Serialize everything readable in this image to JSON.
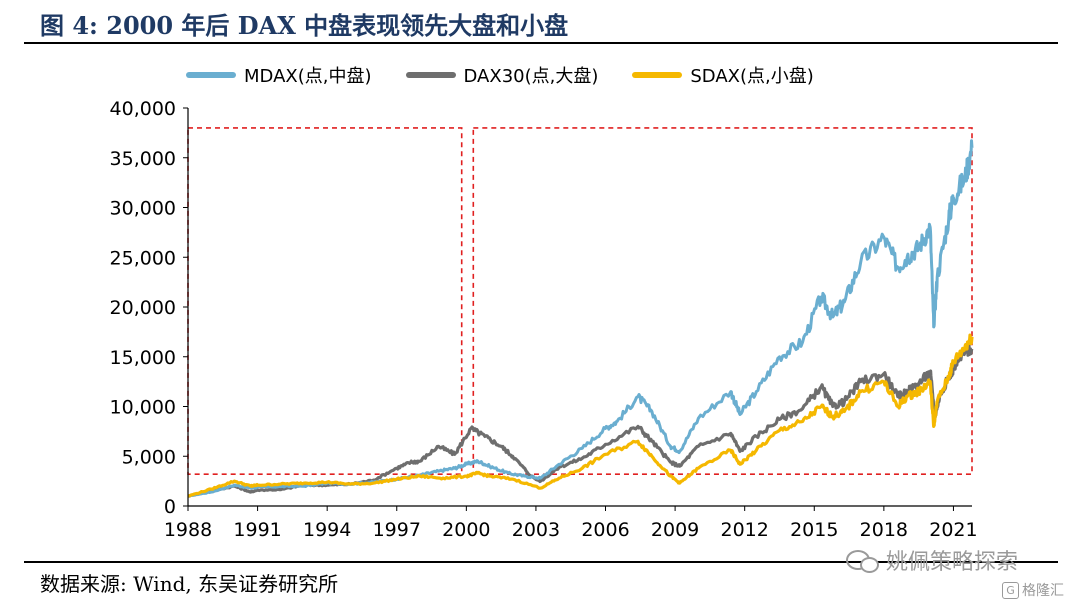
{
  "figure": {
    "title": "图 4:  2000 年后 DAX 中盘表现领先大盘和小盘",
    "source": "数据来源:  Wind,  东吴证券研究所",
    "watermark": "姚佩策略探索",
    "watermark_icon": "wechat-icon",
    "logo_text": "格隆汇",
    "logo_icon": "g-logo-icon"
  },
  "chart_data": {
    "type": "line",
    "title": "",
    "xlabel": "",
    "ylabel": "",
    "ylim": [
      0,
      40000
    ],
    "yticks": [
      "0",
      "5,000",
      "10,000",
      "15,000",
      "20,000",
      "25,000",
      "30,000",
      "35,000",
      "40,000"
    ],
    "xticks": [
      "1988",
      "1991",
      "1994",
      "1997",
      "2000",
      "2003",
      "2006",
      "2009",
      "2012",
      "2015",
      "2018",
      "2021"
    ],
    "xlim": [
      1988,
      2021.8
    ],
    "grid": false,
    "legend": "top",
    "annotations": [
      {
        "type": "dashed-box",
        "color": "#e02020",
        "x_range": [
          1988,
          1999.8
        ],
        "y_range": [
          3200,
          38000
        ]
      },
      {
        "type": "dashed-box",
        "color": "#e02020",
        "x_range": [
          2000.3,
          2021.8
        ],
        "y_range": [
          3200,
          38000
        ]
      }
    ],
    "series": [
      {
        "name": "MDAX(点,中盘)",
        "color": "#6aaed0",
        "x": [
          1988,
          1989,
          1990,
          1990.7,
          1991,
          1992,
          1993,
          1994,
          1995,
          1996,
          1997,
          1998,
          1998.8,
          1999.5,
          2000,
          2000.5,
          2001,
          2001.8,
          2002.5,
          2003.2,
          2004,
          2005,
          2006,
          2006.5,
          2007.4,
          2008,
          2008.8,
          2009.2,
          2010,
          2011.4,
          2011.8,
          2012.5,
          2013.5,
          2014.5,
          2015.3,
          2015.8,
          2016.3,
          2017,
          2018,
          2018.6,
          2019,
          2019.5,
          2020,
          2020.15,
          2020.3,
          2020.8,
          2021,
          2021.5,
          2021.8
        ],
        "values": [
          1000,
          1400,
          2100,
          1800,
          1900,
          1950,
          2000,
          2300,
          2200,
          2400,
          2700,
          3100,
          3500,
          3800,
          4200,
          4500,
          4000,
          3300,
          3000,
          2800,
          4200,
          5800,
          7800,
          8500,
          11000,
          9500,
          6000,
          5500,
          8800,
          11500,
          9200,
          11500,
          15000,
          16500,
          21000,
          19000,
          20500,
          24500,
          27000,
          24000,
          25000,
          26000,
          28000,
          18000,
          23000,
          29000,
          31000,
          33000,
          36000
        ]
      },
      {
        "name": "DAX30(点,大盘)",
        "color": "#6e6e6e",
        "x": [
          1988,
          1989,
          1990,
          1990.7,
          1991,
          1992,
          1993,
          1994,
          1995,
          1996,
          1997,
          1997.6,
          1998,
          1998.8,
          1999.5,
          2000.2,
          2000.8,
          2001.5,
          2002,
          2002.8,
          2003.2,
          2004,
          2005,
          2006,
          2007.4,
          2008,
          2008.8,
          2009.2,
          2010,
          2011.4,
          2011.8,
          2012.5,
          2013.5,
          2014.5,
          2015.3,
          2015.8,
          2016.3,
          2017,
          2018,
          2018.6,
          2019,
          2019.5,
          2020,
          2020.2,
          2020.4,
          2020.8,
          2021,
          2021.5,
          2021.8
        ],
        "values": [
          1000,
          1500,
          2000,
          1400,
          1600,
          1650,
          2100,
          2100,
          2200,
          2600,
          3800,
          4400,
          4500,
          6000,
          5200,
          7800,
          7000,
          6000,
          5000,
          3000,
          2500,
          3900,
          4800,
          6200,
          8000,
          6500,
          4400,
          4000,
          6000,
          7300,
          5500,
          7000,
          8700,
          9800,
          12000,
          10000,
          10500,
          12500,
          13300,
          11000,
          11500,
          12300,
          13500,
          9000,
          11000,
          13000,
          13800,
          15500,
          15800
        ]
      },
      {
        "name": "SDAX(点,小盘)",
        "color": "#f5b800",
        "x": [
          1988,
          1989,
          1990,
          1990.7,
          1991,
          1992,
          1993,
          1994,
          1995,
          1996,
          1997,
          1998,
          1999,
          2000,
          2000.5,
          2001,
          2002,
          2003.2,
          2004,
          2005,
          2006,
          2007.4,
          2008,
          2008.8,
          2009.2,
          2010,
          2011.4,
          2011.8,
          2012.5,
          2013.5,
          2014.5,
          2015.3,
          2015.8,
          2016.3,
          2017,
          2018,
          2018.6,
          2019,
          2019.5,
          2020,
          2020.15,
          2020.3,
          2020.8,
          2021,
          2021.5,
          2021.8
        ],
        "values": [
          1000,
          1700,
          2500,
          2000,
          2100,
          2200,
          2300,
          2400,
          2200,
          2300,
          2700,
          3000,
          2800,
          3000,
          3300,
          3000,
          2700,
          1800,
          2800,
          3800,
          5200,
          6500,
          5000,
          3000,
          2300,
          3800,
          5600,
          4200,
          5600,
          7600,
          8500,
          10000,
          9000,
          9500,
          11500,
          12500,
          10000,
          11000,
          11500,
          12500,
          8000,
          10500,
          13000,
          14500,
          16000,
          17000
        ]
      }
    ]
  }
}
